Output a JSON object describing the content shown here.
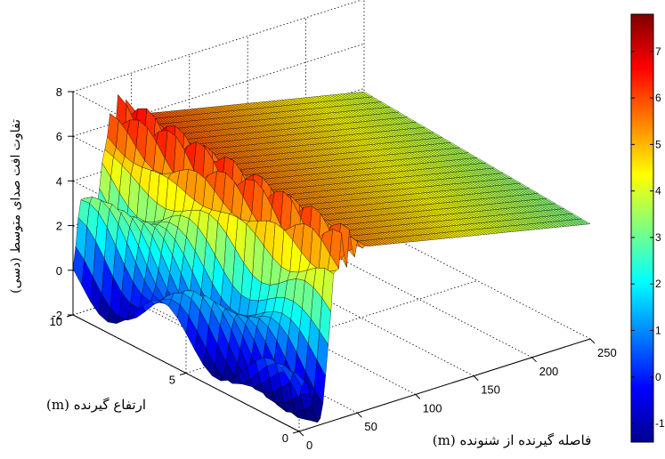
{
  "chart_data": {
    "type": "surface",
    "zlabel": "تفاوت افت صدای متوسط (دسی)",
    "xlabel": "فاصله گیرنده از شنونده (m)",
    "ylabel": "ارتفاع گیرنده (m)",
    "x_ticks": [
      "0",
      "50",
      "100",
      "150",
      "200",
      "250"
    ],
    "y_ticks": [
      "0",
      "5",
      "10"
    ],
    "z_ticks": [
      "-2",
      "0",
      "2",
      "4",
      "6",
      "8"
    ],
    "xlim": [
      0,
      250
    ],
    "ylim": [
      0,
      10
    ],
    "zlim": [
      -2,
      8
    ],
    "colormap": "jet",
    "colorbar_ticks": [
      "-1",
      "0",
      "1",
      "2",
      "3",
      "4",
      "5",
      "6",
      "7"
    ],
    "colorbar_range": [
      -1.4,
      7.8
    ],
    "grid": true,
    "colors": {
      "edge": "#000000",
      "background": "#ffffff"
    }
  }
}
